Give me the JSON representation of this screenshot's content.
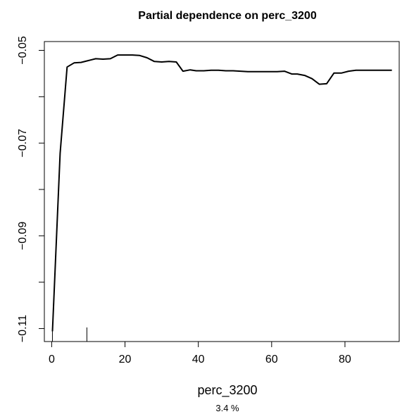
{
  "chart_data": {
    "type": "line",
    "title": "Partial dependence on perc_3200",
    "xlabel": "perc_3200",
    "subtitle": "3.4 %",
    "ylabel": "",
    "xlim": [
      -2,
      94.8
    ],
    "ylim": [
      -0.1128,
      -0.0481
    ],
    "x_ticks": [
      0,
      20,
      40,
      60,
      80
    ],
    "y_ticks": [
      -0.05,
      -0.06,
      -0.07,
      -0.08,
      -0.09,
      -0.1,
      -0.11
    ],
    "y_tick_labels": [
      "-0.05",
      "",
      "-0.07",
      "",
      "-0.09",
      "",
      "-0.11"
    ],
    "rug": [
      0.2,
      9.6
    ],
    "series": [
      {
        "x": [
          0.2,
          2.3,
          4.2,
          6.1,
          8.0,
          10.0,
          12.0,
          14.0,
          16.0,
          18.0,
          20.0,
          22.0,
          24.0,
          26.0,
          28.0,
          30.0,
          32.0,
          34.0,
          35.8,
          37.8,
          39.4,
          41.5,
          43.5,
          45.5,
          47.5,
          49.5,
          51.5,
          53.5,
          55.5,
          57.5,
          59.5,
          61.5,
          63.5,
          65.5,
          67.0,
          69.0,
          71.0,
          73.0,
          75.0,
          77.0,
          79.0,
          81.0,
          83.0,
          85.0,
          87.0,
          89.0,
          91.0,
          92.8
        ],
        "y": [
          -0.1106,
          -0.0722,
          -0.0536,
          -0.0527,
          -0.0526,
          -0.0522,
          -0.0518,
          -0.0519,
          -0.0518,
          -0.051,
          -0.051,
          -0.051,
          -0.0511,
          -0.0516,
          -0.0524,
          -0.0525,
          -0.0524,
          -0.0525,
          -0.0545,
          -0.0542,
          -0.0544,
          -0.0544,
          -0.0543,
          -0.0543,
          -0.0544,
          -0.0544,
          -0.0545,
          -0.0546,
          -0.0546,
          -0.0546,
          -0.0546,
          -0.0546,
          -0.0545,
          -0.0551,
          -0.0551,
          -0.0554,
          -0.0561,
          -0.0573,
          -0.0572,
          -0.0549,
          -0.0549,
          -0.0545,
          -0.0543,
          -0.0543,
          -0.0543,
          -0.0543,
          -0.0543,
          -0.0543
        ]
      }
    ]
  }
}
